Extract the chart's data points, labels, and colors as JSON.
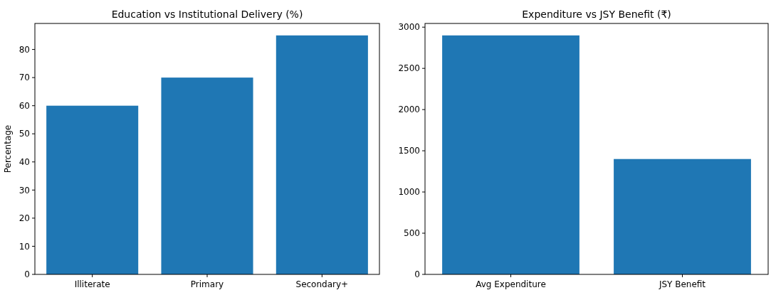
{
  "chart_data": [
    {
      "type": "bar",
      "title": "Education vs Institutional Delivery (%)",
      "ylabel": "Percentage",
      "categories": [
        "Illiterate",
        "Primary",
        "Secondary+"
      ],
      "values": [
        60,
        70,
        85
      ],
      "color": "#1f77b4",
      "ylim": [
        0,
        89.25
      ],
      "yticks": [
        0,
        10,
        20,
        30,
        40,
        50,
        60,
        70,
        80
      ]
    },
    {
      "type": "bar",
      "title": "Expenditure vs JSY Benefit (₹)",
      "categories": [
        "Avg Expenditure",
        "JSY Benefit"
      ],
      "values": [
        2900,
        1400
      ],
      "color": "#1f77b4",
      "ylim": [
        0,
        3045
      ],
      "yticks": [
        0,
        500,
        1000,
        1500,
        2000,
        2500,
        3000
      ]
    }
  ]
}
